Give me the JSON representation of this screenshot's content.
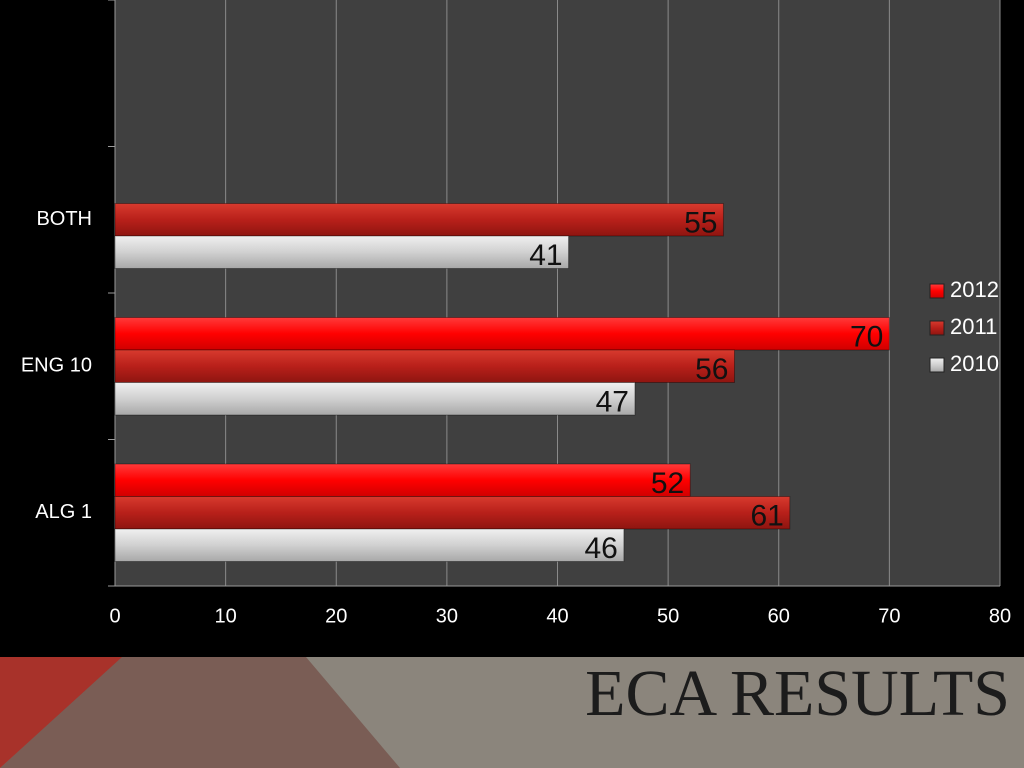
{
  "chart_data": {
    "type": "hbar",
    "title": "ECA RESULTS",
    "categories": [
      "ALG 1",
      "ENG 10",
      "BOTH",
      null
    ],
    "series": [
      {
        "name": "2012",
        "color": "#ff1a1a",
        "values": [
          52,
          70,
          null,
          null
        ]
      },
      {
        "name": "2011",
        "color": "#c8281e",
        "values": [
          61,
          56,
          55,
          null
        ]
      },
      {
        "name": "2010",
        "color": "#d4d4d4",
        "values": [
          46,
          47,
          41,
          null
        ]
      }
    ],
    "xlim": [
      0,
      80
    ],
    "xticks": [
      0,
      10,
      20,
      30,
      40,
      50,
      60,
      70,
      80
    ],
    "grid": true,
    "legend": "right"
  }
}
